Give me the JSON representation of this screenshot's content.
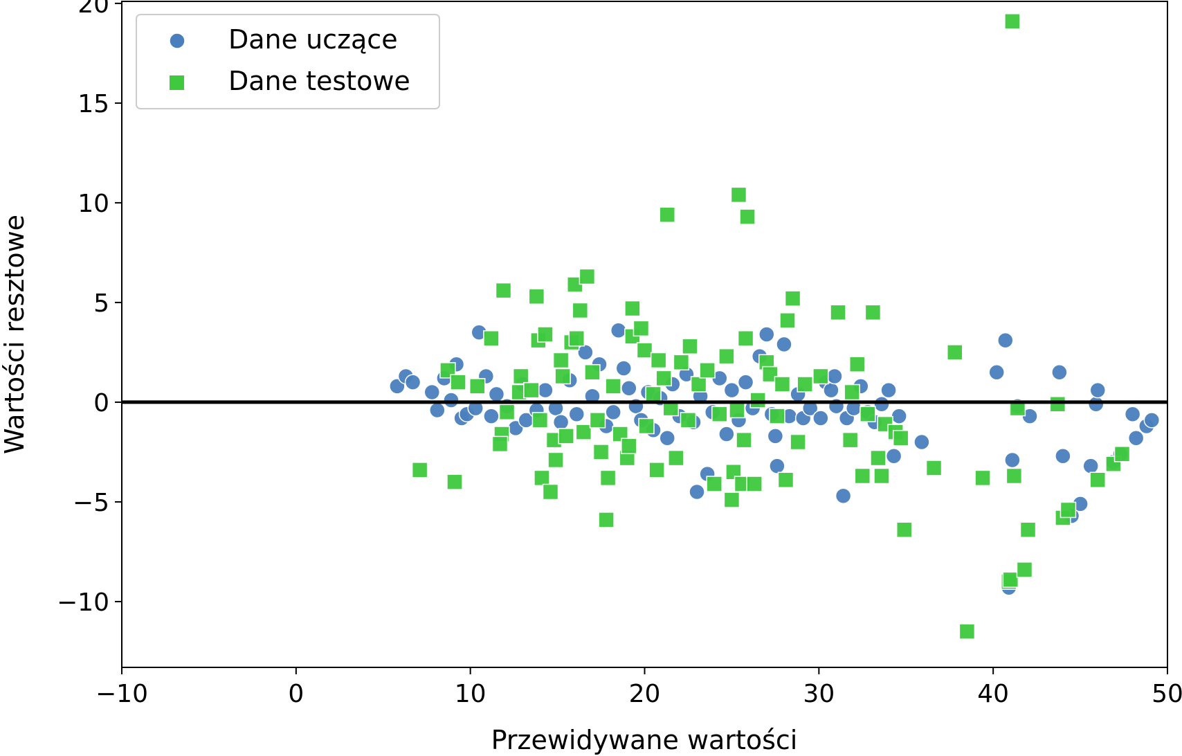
{
  "chart_data": {
    "type": "scatter",
    "xlabel": "Przewidywane wartości",
    "ylabel": "Wartości resztowe",
    "xlim": [
      -10,
      50
    ],
    "ylim": [
      -13.3,
      20.1
    ],
    "xticks": [
      -10,
      0,
      10,
      20,
      30,
      40,
      50
    ],
    "xtick_labels": [
      "−10",
      "0",
      "10",
      "20",
      "30",
      "40",
      "50"
    ],
    "yticks": [
      -10,
      -5,
      0,
      5,
      10,
      15,
      20
    ],
    "ytick_labels": [
      "−10",
      "−5",
      "0",
      "5",
      "10",
      "15",
      "20"
    ],
    "hline": {
      "y": 0,
      "color": "#000000"
    },
    "legend_position": "top-left",
    "series": [
      {
        "name": "Dane uczące",
        "marker": "circle",
        "color": "#4a7fbd",
        "points": [
          [
            5.8,
            0.8
          ],
          [
            6.3,
            1.3
          ],
          [
            6.7,
            1.0
          ],
          [
            7.8,
            0.5
          ],
          [
            8.1,
            -0.4
          ],
          [
            8.5,
            1.2
          ],
          [
            8.9,
            0.1
          ],
          [
            9.2,
            1.9
          ],
          [
            9.5,
            -0.8
          ],
          [
            9.8,
            -0.6
          ],
          [
            10.3,
            -0.3
          ],
          [
            10.5,
            3.5
          ],
          [
            10.9,
            1.3
          ],
          [
            11.2,
            -0.7
          ],
          [
            11.5,
            0.4
          ],
          [
            12.1,
            -0.2
          ],
          [
            12.6,
            -1.3
          ],
          [
            13.0,
            0.9
          ],
          [
            13.2,
            -0.9
          ],
          [
            13.8,
            -0.4
          ],
          [
            14.3,
            0.6
          ],
          [
            14.9,
            -0.3
          ],
          [
            15.2,
            -1.0
          ],
          [
            15.7,
            1.1
          ],
          [
            16.1,
            -0.6
          ],
          [
            16.6,
            2.5
          ],
          [
            17.0,
            0.3
          ],
          [
            17.4,
            1.9
          ],
          [
            17.8,
            -1.2
          ],
          [
            18.2,
            -0.5
          ],
          [
            18.5,
            3.6
          ],
          [
            18.8,
            1.7
          ],
          [
            19.1,
            0.7
          ],
          [
            19.5,
            -0.2
          ],
          [
            19.8,
            -0.9
          ],
          [
            20.2,
            0.5
          ],
          [
            20.5,
            -1.4
          ],
          [
            20.9,
            0.2
          ],
          [
            21.3,
            -1.8
          ],
          [
            21.6,
            0.9
          ],
          [
            22.0,
            -0.7
          ],
          [
            22.4,
            1.4
          ],
          [
            22.8,
            -1.0
          ],
          [
            23.0,
            -4.5
          ],
          [
            23.2,
            0.3
          ],
          [
            23.6,
            -3.6
          ],
          [
            23.9,
            -0.5
          ],
          [
            24.3,
            1.2
          ],
          [
            24.7,
            -1.6
          ],
          [
            25.0,
            0.6
          ],
          [
            25.4,
            -0.9
          ],
          [
            25.8,
            1.0
          ],
          [
            26.2,
            -0.3
          ],
          [
            26.6,
            2.3
          ],
          [
            27.0,
            3.4
          ],
          [
            27.3,
            -0.6
          ],
          [
            27.5,
            -1.7
          ],
          [
            27.6,
            -3.2
          ],
          [
            28.0,
            2.9
          ],
          [
            28.3,
            -0.7
          ],
          [
            28.8,
            0.4
          ],
          [
            29.1,
            -0.8
          ],
          [
            29.5,
            -0.3
          ],
          [
            30.1,
            -0.8
          ],
          [
            30.4,
            1.0
          ],
          [
            30.7,
            0.6
          ],
          [
            30.9,
            1.3
          ],
          [
            31.0,
            -0.2
          ],
          [
            31.4,
            -4.7
          ],
          [
            31.6,
            -0.8
          ],
          [
            32.0,
            -0.3
          ],
          [
            32.4,
            0.8
          ],
          [
            32.8,
            -0.5
          ],
          [
            33.2,
            -1.0
          ],
          [
            33.6,
            -0.1
          ],
          [
            34.0,
            0.6
          ],
          [
            34.3,
            -2.7
          ],
          [
            34.6,
            -0.7
          ],
          [
            35.9,
            -2.0
          ],
          [
            40.2,
            1.5
          ],
          [
            40.7,
            3.1
          ],
          [
            41.1,
            -2.9
          ],
          [
            41.4,
            -0.2
          ],
          [
            42.1,
            -0.7
          ],
          [
            40.9,
            -9.3
          ],
          [
            43.8,
            1.5
          ],
          [
            44.0,
            -2.7
          ],
          [
            44.5,
            -5.7
          ],
          [
            45.0,
            -5.1
          ],
          [
            45.6,
            -3.2
          ],
          [
            45.9,
            -0.1
          ],
          [
            46.0,
            0.6
          ],
          [
            46.9,
            -3.0
          ],
          [
            47.3,
            -2.6
          ],
          [
            48.0,
            -0.6
          ],
          [
            48.2,
            -1.8
          ],
          [
            48.8,
            -1.2
          ],
          [
            49.1,
            -0.9
          ]
        ]
      },
      {
        "name": "Dane testowe",
        "marker": "square",
        "color": "#3ec93e",
        "points": [
          [
            7.1,
            -3.4
          ],
          [
            8.7,
            1.6
          ],
          [
            9.1,
            -4.0
          ],
          [
            9.3,
            1.0
          ],
          [
            10.4,
            0.8
          ],
          [
            11.2,
            3.2
          ],
          [
            11.8,
            -1.6
          ],
          [
            11.7,
            -2.1
          ],
          [
            11.9,
            5.6
          ],
          [
            12.1,
            -0.5
          ],
          [
            12.8,
            0.5
          ],
          [
            12.9,
            1.3
          ],
          [
            13.5,
            0.6
          ],
          [
            13.8,
            5.3
          ],
          [
            13.9,
            3.1
          ],
          [
            14.0,
            -0.9
          ],
          [
            14.1,
            -3.8
          ],
          [
            14.3,
            3.4
          ],
          [
            14.6,
            -4.5
          ],
          [
            14.8,
            -1.9
          ],
          [
            14.9,
            -2.9
          ],
          [
            15.2,
            2.1
          ],
          [
            15.3,
            1.3
          ],
          [
            15.5,
            -1.7
          ],
          [
            15.8,
            3.0
          ],
          [
            16.0,
            5.9
          ],
          [
            16.1,
            3.2
          ],
          [
            16.3,
            4.6
          ],
          [
            16.5,
            -1.5
          ],
          [
            16.7,
            6.3
          ],
          [
            17.0,
            1.5
          ],
          [
            17.3,
            -0.9
          ],
          [
            17.5,
            -2.5
          ],
          [
            17.8,
            -5.9
          ],
          [
            17.9,
            -3.8
          ],
          [
            18.2,
            0.8
          ],
          [
            18.6,
            -1.6
          ],
          [
            19.0,
            -2.8
          ],
          [
            19.1,
            -2.2
          ],
          [
            19.3,
            4.7
          ],
          [
            19.3,
            3.3
          ],
          [
            19.8,
            3.7
          ],
          [
            20.0,
            2.6
          ],
          [
            20.1,
            -1.2
          ],
          [
            20.5,
            0.4
          ],
          [
            20.7,
            -3.4
          ],
          [
            20.8,
            2.1
          ],
          [
            21.1,
            1.2
          ],
          [
            21.3,
            9.4
          ],
          [
            21.5,
            -0.3
          ],
          [
            21.8,
            -2.8
          ],
          [
            22.1,
            2.0
          ],
          [
            22.5,
            -0.9
          ],
          [
            22.6,
            2.8
          ],
          [
            23.1,
            0.9
          ],
          [
            23.6,
            1.6
          ],
          [
            24.0,
            -4.1
          ],
          [
            24.3,
            -0.6
          ],
          [
            24.7,
            2.3
          ],
          [
            25.0,
            -4.9
          ],
          [
            25.1,
            -3.5
          ],
          [
            25.3,
            -0.4
          ],
          [
            25.4,
            10.4
          ],
          [
            25.6,
            -4.1
          ],
          [
            25.7,
            -1.9
          ],
          [
            25.8,
            3.2
          ],
          [
            25.9,
            9.3
          ],
          [
            26.3,
            -4.1
          ],
          [
            26.5,
            0.1
          ],
          [
            27.0,
            2.0
          ],
          [
            27.2,
            1.4
          ],
          [
            27.6,
            -0.7
          ],
          [
            27.9,
            0.9
          ],
          [
            28.1,
            -3.9
          ],
          [
            28.2,
            4.1
          ],
          [
            28.5,
            5.2
          ],
          [
            28.8,
            -2.0
          ],
          [
            29.2,
            0.9
          ],
          [
            30.1,
            1.3
          ],
          [
            31.1,
            4.5
          ],
          [
            31.8,
            -1.9
          ],
          [
            31.9,
            0.5
          ],
          [
            32.2,
            1.9
          ],
          [
            32.5,
            -3.7
          ],
          [
            32.8,
            -0.6
          ],
          [
            33.1,
            4.5
          ],
          [
            33.4,
            -2.8
          ],
          [
            33.6,
            -3.7
          ],
          [
            33.8,
            -1.1
          ],
          [
            34.4,
            -1.5
          ],
          [
            34.7,
            -1.8
          ],
          [
            34.9,
            -6.4
          ],
          [
            36.6,
            -3.3
          ],
          [
            37.8,
            2.5
          ],
          [
            38.5,
            -11.5
          ],
          [
            39.4,
            -3.8
          ],
          [
            40.9,
            -9.0
          ],
          [
            41.0,
            -8.9
          ],
          [
            41.1,
            19.1
          ],
          [
            41.2,
            -3.7
          ],
          [
            41.4,
            -0.3
          ],
          [
            41.8,
            -8.4
          ],
          [
            42.0,
            -6.4
          ],
          [
            43.7,
            -0.1
          ],
          [
            44.0,
            -5.8
          ],
          [
            44.3,
            -5.4
          ],
          [
            46.0,
            -3.9
          ],
          [
            46.9,
            -3.1
          ],
          [
            47.4,
            -2.6
          ]
        ]
      }
    ]
  }
}
